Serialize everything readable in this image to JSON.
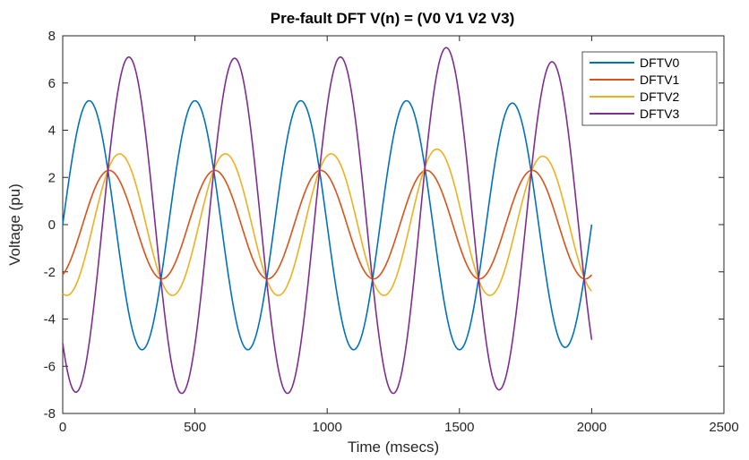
{
  "chart_data": {
    "type": "line",
    "title": "Pre-fault DFT V(n) = (V0 V1 V2 V3)",
    "xlabel": "Time (msecs)",
    "ylabel": "Voltage (pu)",
    "xlim": [
      0,
      2500
    ],
    "ylim": [
      -8,
      8
    ],
    "xticks": [
      0,
      500,
      1000,
      1500,
      2000,
      2500
    ],
    "yticks": [
      -8,
      -6,
      -4,
      -2,
      0,
      2,
      4,
      6,
      8
    ],
    "legend_position": "top-right",
    "grid": false,
    "period_ms": 400,
    "x_range": [
      0,
      2000
    ],
    "series": [
      {
        "name": "DFTV0",
        "color": "#0072BD",
        "amplitude": 5.3,
        "peaks": [
          {
            "x": 100,
            "y": 5.25
          },
          {
            "x": 500,
            "y": 5.25
          },
          {
            "x": 900,
            "y": 5.25
          },
          {
            "x": 1300,
            "y": 5.25
          },
          {
            "x": 1700,
            "y": 5.15
          }
        ],
        "troughs": [
          {
            "x": 300,
            "y": -5.3
          },
          {
            "x": 700,
            "y": -5.3
          },
          {
            "x": 1100,
            "y": -5.3
          },
          {
            "x": 1500,
            "y": -5.3
          },
          {
            "x": 1900,
            "y": -5.2
          }
        ],
        "start": {
          "x": 0,
          "y": 0.8
        },
        "end": {
          "x": 2000,
          "y": -0.7
        }
      },
      {
        "name": "DFTV1",
        "color": "#D95319",
        "amplitude": 2.3,
        "peaks": [
          {
            "x": 175,
            "y": 2.3
          },
          {
            "x": 575,
            "y": 2.3
          },
          {
            "x": 975,
            "y": 2.3
          },
          {
            "x": 1375,
            "y": 2.3
          },
          {
            "x": 1775,
            "y": 2.3
          }
        ],
        "troughs": [
          {
            "x": 375,
            "y": -2.3
          },
          {
            "x": 775,
            "y": -2.3
          },
          {
            "x": 1175,
            "y": -2.3
          },
          {
            "x": 1575,
            "y": -2.3
          },
          {
            "x": 1975,
            "y": -2.3
          }
        ],
        "start": {
          "x": 0,
          "y": -1.9
        },
        "end": {
          "x": 2000,
          "y": -2.2
        }
      },
      {
        "name": "DFTV2",
        "color": "#EDB120",
        "amplitude": 3.0,
        "peaks": [
          {
            "x": 215,
            "y": 3.0
          },
          {
            "x": 615,
            "y": 3.0
          },
          {
            "x": 1015,
            "y": 3.0
          },
          {
            "x": 1415,
            "y": 3.2
          },
          {
            "x": 1815,
            "y": 2.9
          }
        ],
        "troughs": [
          {
            "x": 15,
            "y": -3.0
          },
          {
            "x": 415,
            "y": -3.0
          },
          {
            "x": 815,
            "y": -3.0
          },
          {
            "x": 1215,
            "y": -3.0
          },
          {
            "x": 1615,
            "y": -3.0
          }
        ],
        "start": {
          "x": 0,
          "y": -2.9
        },
        "end": {
          "x": 2000,
          "y": -1.6
        }
      },
      {
        "name": "DFTV3",
        "color": "#7E2F8E",
        "amplitude": 7.1,
        "peaks": [
          {
            "x": 250,
            "y": 7.1
          },
          {
            "x": 650,
            "y": 7.05
          },
          {
            "x": 1050,
            "y": 7.1
          },
          {
            "x": 1450,
            "y": 7.5
          },
          {
            "x": 1850,
            "y": 6.9
          }
        ],
        "troughs": [
          {
            "x": 50,
            "y": -7.1
          },
          {
            "x": 450,
            "y": -7.15
          },
          {
            "x": 850,
            "y": -7.15
          },
          {
            "x": 1250,
            "y": -7.15
          },
          {
            "x": 1650,
            "y": -7.0
          }
        ],
        "start": {
          "x": 0,
          "y": -6.0
        },
        "end": {
          "x": 2000,
          "y": -4.2
        }
      }
    ]
  }
}
